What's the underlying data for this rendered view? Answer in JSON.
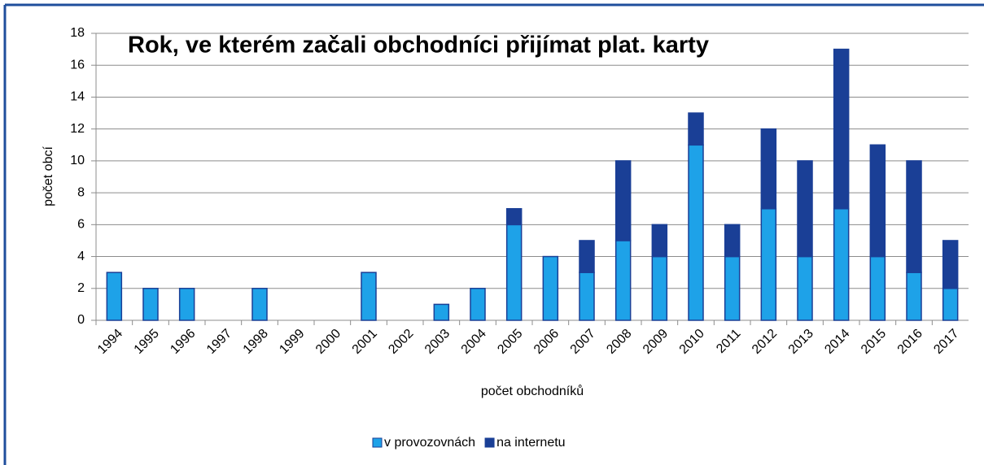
{
  "chart_data": {
    "type": "stacked_bar",
    "title": "Rok, ve kterém začali obchodníci přijímat plat. karty",
    "x_label": "počet obchodníků",
    "y_label": "počet obcí",
    "categories": [
      "1994",
      "1995",
      "1996",
      "1997",
      "1998",
      "1999",
      "2000",
      "2001",
      "2002",
      "2003",
      "2004",
      "2005",
      "2006",
      "2007",
      "2008",
      "2009",
      "2010",
      "2011",
      "2012",
      "2013",
      "2014",
      "2015",
      "2016",
      "2017"
    ],
    "series": [
      {
        "name": "v provozovnách",
        "color": "#1ea2e8",
        "values": [
          3,
          2,
          2,
          0,
          2,
          0,
          0,
          3,
          0,
          1,
          2,
          6,
          4,
          3,
          5,
          4,
          11,
          4,
          7,
          4,
          7,
          4,
          3,
          2
        ]
      },
      {
        "name": "na internetu",
        "color": "#1a3f96",
        "values": [
          0,
          0,
          0,
          0,
          0,
          0,
          0,
          0,
          0,
          0,
          0,
          1,
          0,
          2,
          5,
          2,
          2,
          2,
          5,
          6,
          10,
          7,
          7,
          3
        ]
      }
    ],
    "ylim": [
      0,
      18
    ],
    "yticks": [
      0,
      2,
      4,
      6,
      8,
      10,
      12,
      14,
      16,
      18
    ],
    "grid": true,
    "legend": "bottom"
  }
}
